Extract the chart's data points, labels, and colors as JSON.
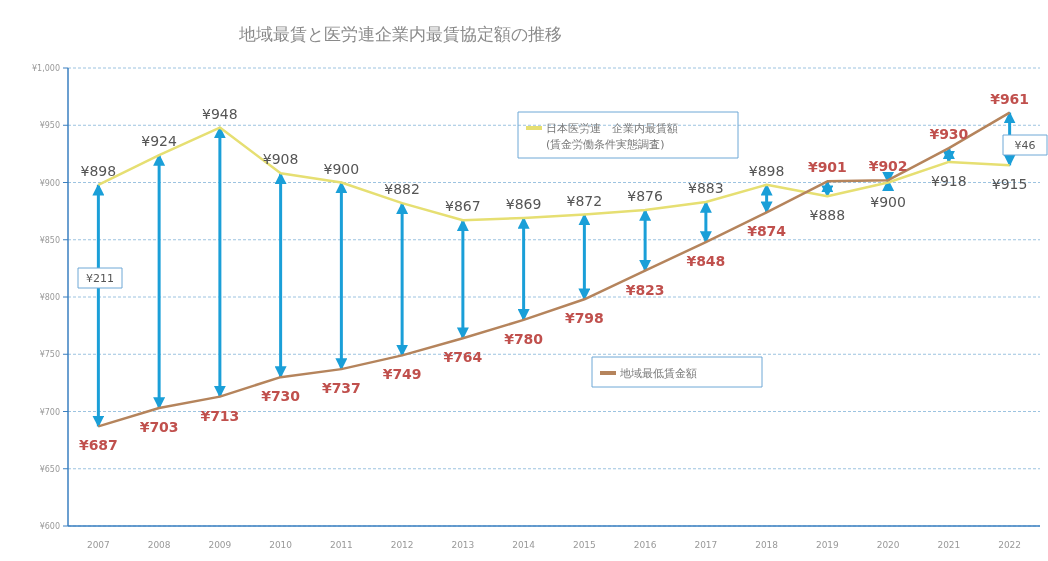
{
  "chart_data": {
    "type": "line",
    "title": "地域最賃と医労連企業内最賃協定額の推移",
    "categories": [
      "2007",
      "2008",
      "2009",
      "2010",
      "2011",
      "2012",
      "2013",
      "2014",
      "2015",
      "2016",
      "2017",
      "2018",
      "2019",
      "2020",
      "2021",
      "2022"
    ],
    "series": [
      {
        "name": "日本医労連　企業内最賃額\n(賃金労働条件実態調査)",
        "color": "#e6df72",
        "values": [
          898,
          924,
          948,
          908,
          900,
          882,
          867,
          869,
          872,
          876,
          883,
          898,
          888,
          900,
          918,
          915
        ],
        "value_labels": [
          "¥898",
          "¥924",
          "¥948",
          "¥908",
          "¥900",
          "¥882",
          "¥867",
          "¥869",
          "¥872",
          "¥876",
          "¥883",
          "¥898",
          "¥888",
          "¥900",
          "¥918",
          "¥915"
        ]
      },
      {
        "name": "地域最低賃金額",
        "color": "#b5845c",
        "values": [
          687,
          703,
          713,
          730,
          737,
          749,
          764,
          780,
          798,
          823,
          848,
          874,
          901,
          902,
          930,
          961
        ],
        "value_labels": [
          "¥687",
          "¥703",
          "¥713",
          "¥730",
          "¥737",
          "¥749",
          "¥764",
          "¥780",
          "¥798",
          "¥823",
          "¥848",
          "¥874",
          "¥901",
          "¥902",
          "¥930",
          "¥961"
        ]
      }
    ],
    "ylim": [
      600,
      1000
    ],
    "yticks": [
      {
        "value": 600,
        "label": "¥600"
      },
      {
        "value": 650,
        "label": "¥650"
      },
      {
        "value": 700,
        "label": "¥700"
      },
      {
        "value": 750,
        "label": "¥750"
      },
      {
        "value": 800,
        "label": "¥800"
      },
      {
        "value": 850,
        "label": "¥850"
      },
      {
        "value": 900,
        "label": "¥900"
      },
      {
        "value": 950,
        "label": "¥950"
      },
      {
        "value": 1000,
        "label": "¥1,000"
      }
    ],
    "grid": "y",
    "legend": "center",
    "marker": "none",
    "line_style": "solid",
    "annotations": [
      "¥211",
      "¥46"
    ]
  }
}
